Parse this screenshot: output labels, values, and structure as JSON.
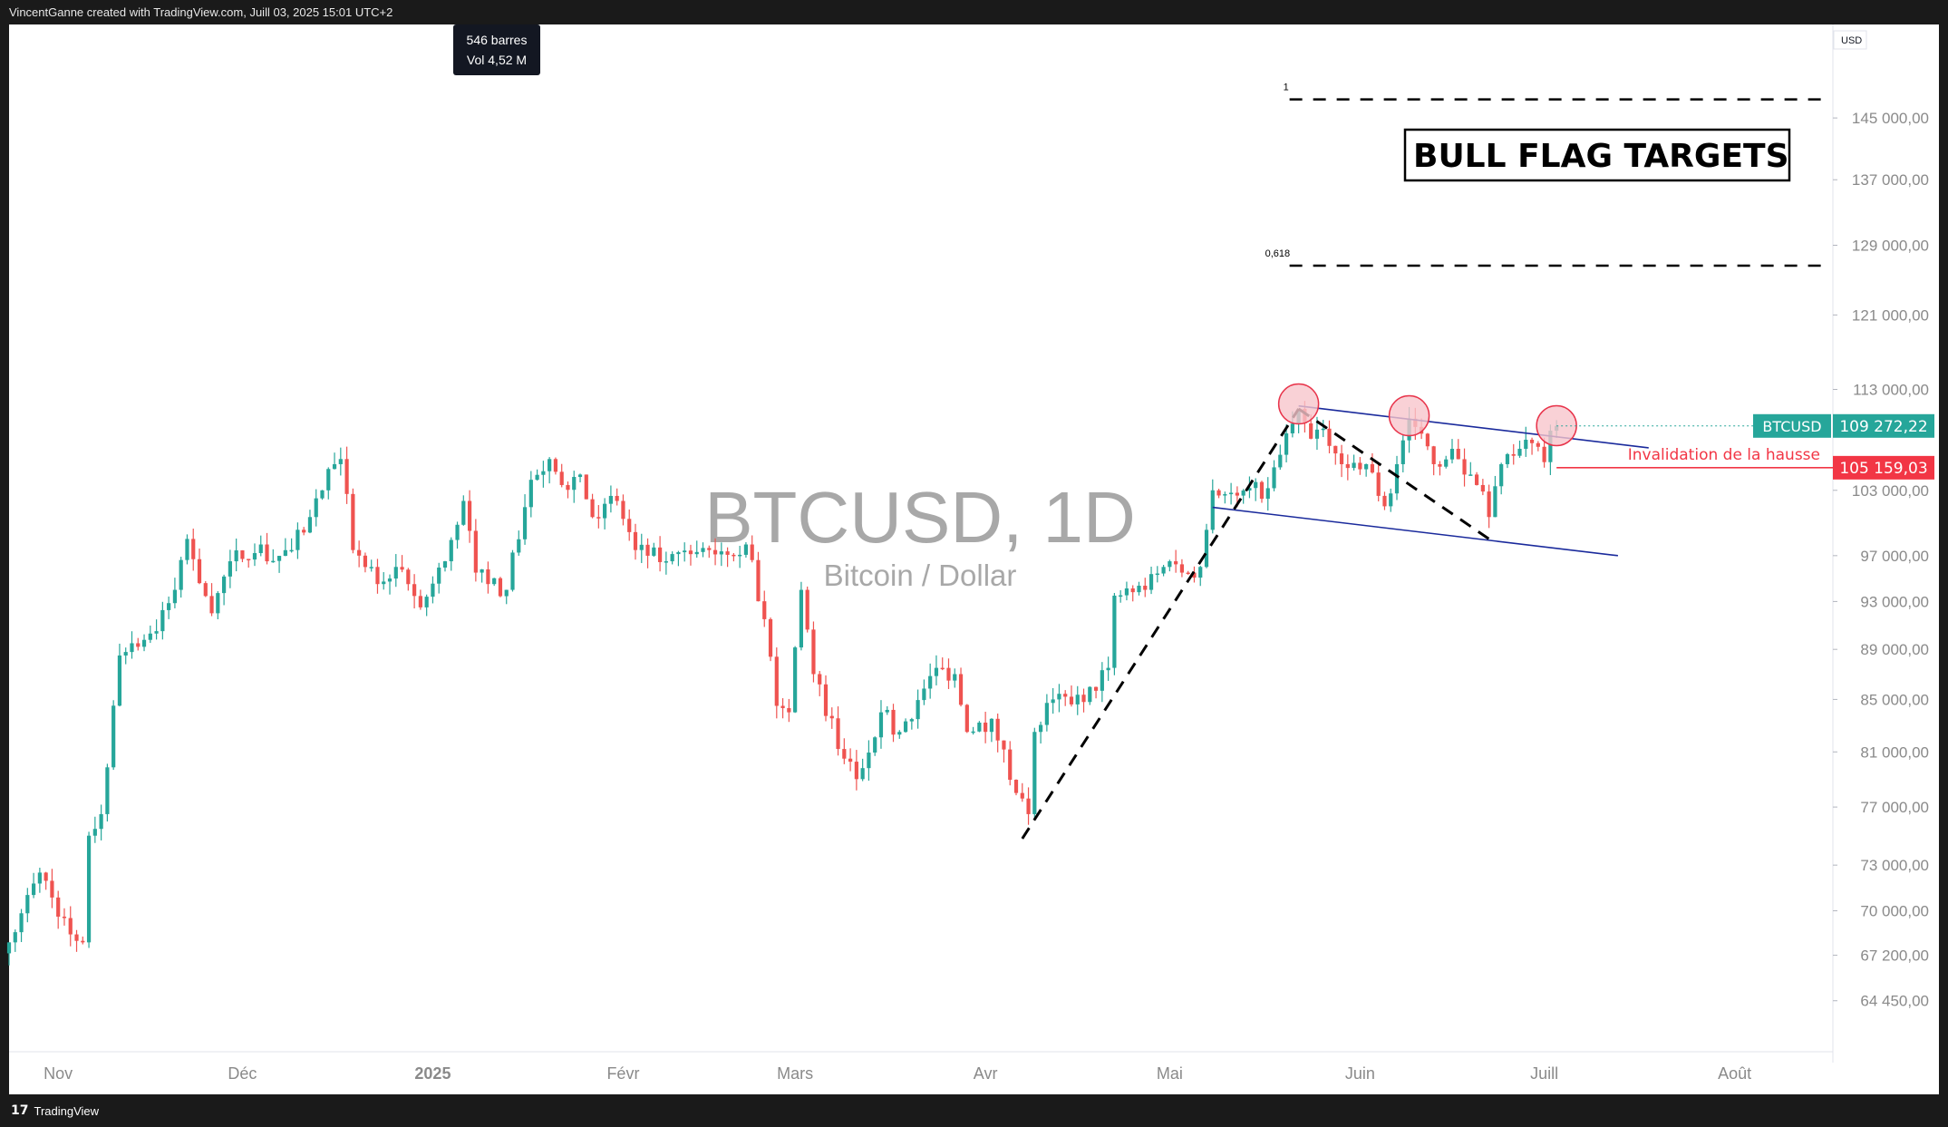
{
  "header": {
    "credit": "VincentGanne created with TradingView.com, Juill 03, 2025 15:01 UTC+2"
  },
  "footer": {
    "brand": "TradingView",
    "logo_mark": "17"
  },
  "tooltip": {
    "bars": "546 barres",
    "volume": "Vol 4,52 M"
  },
  "watermark": {
    "symbol": "BTCUSD, 1D",
    "name": "Bitcoin / Dollar"
  },
  "annotations": {
    "target_box": "BULL FLAG TARGETS",
    "fib_1": "1",
    "fib_0618": "0,618",
    "invalidation": "Invalidation de la hausse"
  },
  "price_axis": {
    "currency": "USD",
    "current_symbol": "BTCUSD",
    "current_price": "109 272,22",
    "invalidation_price": "105 159,03"
  },
  "colors": {
    "up": "#26a69a",
    "down": "#ef5350",
    "channel": "#1a2a9c",
    "invalidation": "#f23645",
    "circle_fill": "#f7c6cc",
    "circle_stroke": "#e8334a"
  },
  "chart_data": {
    "type": "candlestick",
    "title": "BTCUSD, 1D",
    "subtitle": "Bitcoin / Dollar",
    "y_scale": "log",
    "ylim": [
      61500,
      158000
    ],
    "x_range": [
      "2024-10-24",
      "2025-08-17"
    ],
    "x_ticks": [
      {
        "date": "2024-11-01",
        "label": "Nov"
      },
      {
        "date": "2024-12-01",
        "label": "Déc"
      },
      {
        "date": "2025-01-01",
        "label": "2025"
      },
      {
        "date": "2025-02-01",
        "label": "Févr"
      },
      {
        "date": "2025-03-01",
        "label": "Mars"
      },
      {
        "date": "2025-04-01",
        "label": "Avr"
      },
      {
        "date": "2025-05-01",
        "label": "Mai"
      },
      {
        "date": "2025-06-01",
        "label": "Juin"
      },
      {
        "date": "2025-07-01",
        "label": "Juill"
      },
      {
        "date": "2025-08-01",
        "label": "Août"
      }
    ],
    "y_ticks": [
      {
        "value": 64450,
        "label": "64 450,00"
      },
      {
        "value": 67200,
        "label": "67 200,00"
      },
      {
        "value": 70000,
        "label": "70 000,00"
      },
      {
        "value": 73000,
        "label": "73 000,00"
      },
      {
        "value": 77000,
        "label": "77 000,00"
      },
      {
        "value": 81000,
        "label": "81 000,00"
      },
      {
        "value": 85000,
        "label": "85 000,00"
      },
      {
        "value": 89000,
        "label": "89 000,00"
      },
      {
        "value": 93000,
        "label": "93 000,00"
      },
      {
        "value": 97000,
        "label": "97 000,00"
      },
      {
        "value": 103000,
        "label": "103 000,00"
      },
      {
        "value": 113000,
        "label": "113 000,00"
      },
      {
        "value": 121000,
        "label": "121 000,00"
      },
      {
        "value": 129000,
        "label": "129 000,00"
      },
      {
        "value": 137000,
        "label": "137 000,00"
      },
      {
        "value": 145000,
        "label": "145 000,00"
      }
    ],
    "anchors": [
      [
        "2024-10-24",
        68000
      ],
      [
        "2024-10-29",
        72500
      ],
      [
        "2024-11-03",
        68500
      ],
      [
        "2024-11-05",
        68000
      ],
      [
        "2024-11-06",
        75000
      ],
      [
        "2024-11-08",
        76500
      ],
      [
        "2024-11-11",
        88500
      ],
      [
        "2024-11-13",
        89500
      ],
      [
        "2024-11-17",
        90500
      ],
      [
        "2024-11-20",
        94000
      ],
      [
        "2024-11-22",
        98500
      ],
      [
        "2024-11-26",
        92000
      ],
      [
        "2024-11-29",
        96500
      ],
      [
        "2024-12-04",
        98000
      ],
      [
        "2024-12-05",
        96500
      ],
      [
        "2024-12-09",
        97500
      ],
      [
        "2024-12-12",
        100500
      ],
      [
        "2024-12-16",
        105500
      ],
      [
        "2024-12-17",
        106000
      ],
      [
        "2024-12-19",
        97500
      ],
      [
        "2024-12-20",
        97000
      ],
      [
        "2024-12-23",
        94500
      ],
      [
        "2024-12-26",
        96000
      ],
      [
        "2024-12-30",
        92500
      ],
      [
        "2025-01-03",
        96500
      ],
      [
        "2025-01-06",
        102000
      ],
      [
        "2025-01-08",
        95500
      ],
      [
        "2025-01-10",
        94500
      ],
      [
        "2025-01-13",
        94000
      ],
      [
        "2025-01-17",
        104000
      ],
      [
        "2025-01-20",
        106000
      ],
      [
        "2025-01-22",
        103500
      ],
      [
        "2025-01-25",
        104500
      ],
      [
        "2025-01-27",
        100500
      ],
      [
        "2025-01-31",
        102000
      ],
      [
        "2025-02-03",
        97500
      ],
      [
        "2025-02-08",
        96500
      ],
      [
        "2025-02-15",
        97500
      ],
      [
        "2025-02-21",
        98000
      ],
      [
        "2025-02-24",
        91500
      ],
      [
        "2025-02-26",
        84500
      ],
      [
        "2025-02-28",
        84000
      ],
      [
        "2025-03-02",
        94000
      ],
      [
        "2025-03-04",
        87000
      ],
      [
        "2025-03-09",
        80500
      ],
      [
        "2025-03-11",
        79000
      ],
      [
        "2025-03-15",
        84000
      ],
      [
        "2025-03-18",
        82500
      ],
      [
        "2025-03-24",
        87500
      ],
      [
        "2025-03-27",
        87000
      ],
      [
        "2025-03-29",
        82500
      ],
      [
        "2025-04-02",
        83500
      ],
      [
        "2025-04-06",
        78000
      ],
      [
        "2025-04-08",
        76500
      ],
      [
        "2025-04-09",
        82500
      ],
      [
        "2025-04-12",
        85000
      ],
      [
        "2025-04-17",
        84800
      ],
      [
        "2025-04-21",
        87500
      ],
      [
        "2025-04-22",
        93500
      ],
      [
        "2025-04-27",
        94000
      ],
      [
        "2025-05-01",
        96500
      ],
      [
        "2025-05-03",
        95500
      ],
      [
        "2025-05-06",
        96000
      ],
      [
        "2025-05-08",
        103000
      ],
      [
        "2025-05-12",
        102500
      ],
      [
        "2025-05-17",
        103200
      ],
      [
        "2025-05-21",
        109500
      ],
      [
        "2025-05-22",
        111000
      ],
      [
        "2025-05-24",
        108000
      ],
      [
        "2025-05-26",
        109000
      ],
      [
        "2025-05-29",
        105500
      ],
      [
        "2025-06-02",
        105500
      ],
      [
        "2025-06-05",
        101500
      ],
      [
        "2025-06-07",
        105500
      ],
      [
        "2025-06-09",
        110000
      ],
      [
        "2025-06-11",
        108500
      ],
      [
        "2025-06-13",
        105500
      ],
      [
        "2025-06-16",
        107000
      ],
      [
        "2025-06-18",
        104500
      ],
      [
        "2025-06-20",
        103500
      ],
      [
        "2025-06-22",
        100500
      ],
      [
        "2025-06-24",
        105500
      ],
      [
        "2025-06-27",
        107000
      ],
      [
        "2025-06-30",
        107200
      ],
      [
        "2025-07-01",
        105700
      ],
      [
        "2025-07-02",
        108800
      ],
      [
        "2025-07-03",
        109272
      ]
    ],
    "overlays": {
      "fib_levels": [
        {
          "label": "1",
          "value": 147500
        },
        {
          "label": "0,618",
          "value": 126600
        }
      ],
      "channel_upper": [
        [
          "2025-05-22",
          111300
        ],
        [
          "2025-07-18",
          107100
        ]
      ],
      "channel_lower": [
        [
          "2025-05-08",
          101400
        ],
        [
          "2025-07-13",
          97000
        ]
      ],
      "impulse_leg": [
        [
          "2025-04-07",
          74800
        ],
        [
          "2025-05-22",
          111000
        ]
      ],
      "flag_leg": [
        [
          "2025-05-22",
          111000
        ],
        [
          "2025-06-22",
          98500
        ]
      ],
      "resistance_circles": [
        [
          "2025-05-22",
          111500
        ],
        [
          "2025-06-09",
          110300
        ],
        [
          "2025-07-03",
          109300
        ]
      ],
      "invalidation_level": {
        "value": 105159.03,
        "from": "2025-07-03"
      }
    }
  }
}
